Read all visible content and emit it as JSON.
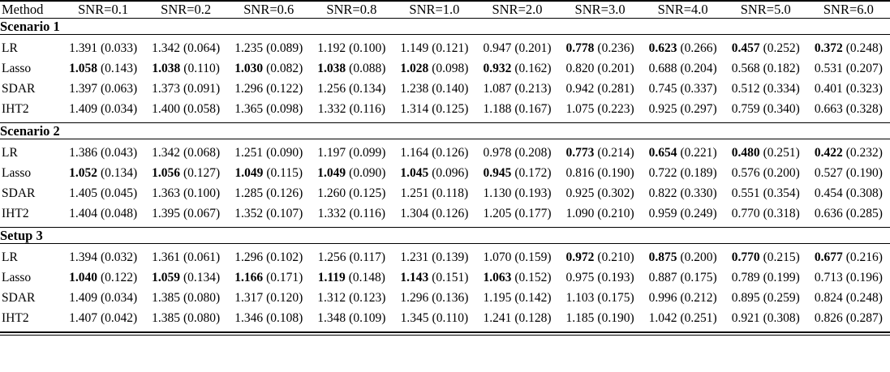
{
  "table": {
    "columns": [
      "Method",
      "SNR=0.1",
      "SNR=0.2",
      "SNR=0.6",
      "SNR=0.8",
      "SNR=1.0",
      "SNR=2.0",
      "SNR=3.0",
      "SNR=4.0",
      "SNR=5.0",
      "SNR=6.0"
    ],
    "sections": [
      {
        "title": "Scenario 1",
        "rows": [
          {
            "method": "LR",
            "cells": [
              {
                "mean": "1.391",
                "sd": "(0.033)",
                "bold": false
              },
              {
                "mean": "1.342",
                "sd": "(0.064)",
                "bold": false
              },
              {
                "mean": "1.235",
                "sd": "(0.089)",
                "bold": false
              },
              {
                "mean": "1.192",
                "sd": "(0.100)",
                "bold": false
              },
              {
                "mean": "1.149",
                "sd": "(0.121)",
                "bold": false
              },
              {
                "mean": "0.947",
                "sd": "(0.201)",
                "bold": false
              },
              {
                "mean": "0.778",
                "sd": "(0.236)",
                "bold": true
              },
              {
                "mean": "0.623",
                "sd": "(0.266)",
                "bold": true
              },
              {
                "mean": "0.457",
                "sd": "(0.252)",
                "bold": true
              },
              {
                "mean": "0.372",
                "sd": "(0.248)",
                "bold": true
              }
            ]
          },
          {
            "method": "Lasso",
            "cells": [
              {
                "mean": "1.058",
                "sd": "(0.143)",
                "bold": true
              },
              {
                "mean": "1.038",
                "sd": "(0.110)",
                "bold": true
              },
              {
                "mean": "1.030",
                "sd": "(0.082)",
                "bold": true
              },
              {
                "mean": "1.038",
                "sd": "(0.088)",
                "bold": true
              },
              {
                "mean": "1.028",
                "sd": "(0.098)",
                "bold": true
              },
              {
                "mean": "0.932",
                "sd": "(0.162)",
                "bold": true
              },
              {
                "mean": "0.820",
                "sd": "(0.201)",
                "bold": false
              },
              {
                "mean": "0.688",
                "sd": "(0.204)",
                "bold": false
              },
              {
                "mean": "0.568",
                "sd": "(0.182)",
                "bold": false
              },
              {
                "mean": "0.531",
                "sd": "(0.207)",
                "bold": false
              }
            ]
          },
          {
            "method": "SDAR",
            "cells": [
              {
                "mean": "1.397",
                "sd": "(0.063)",
                "bold": false
              },
              {
                "mean": "1.373",
                "sd": "(0.091)",
                "bold": false
              },
              {
                "mean": "1.296",
                "sd": "(0.122)",
                "bold": false
              },
              {
                "mean": "1.256",
                "sd": "(0.134)",
                "bold": false
              },
              {
                "mean": "1.238",
                "sd": "(0.140)",
                "bold": false
              },
              {
                "mean": "1.087",
                "sd": "(0.213)",
                "bold": false
              },
              {
                "mean": "0.942",
                "sd": "(0.281)",
                "bold": false
              },
              {
                "mean": "0.745",
                "sd": "(0.337)",
                "bold": false
              },
              {
                "mean": "0.512",
                "sd": "(0.334)",
                "bold": false
              },
              {
                "mean": "0.401",
                "sd": "(0.323)",
                "bold": false
              }
            ]
          },
          {
            "method": "IHT2",
            "cells": [
              {
                "mean": "1.409",
                "sd": "(0.034)",
                "bold": false
              },
              {
                "mean": "1.400",
                "sd": "(0.058)",
                "bold": false
              },
              {
                "mean": "1.365",
                "sd": "(0.098)",
                "bold": false
              },
              {
                "mean": "1.332",
                "sd": "(0.116)",
                "bold": false
              },
              {
                "mean": "1.314",
                "sd": "(0.125)",
                "bold": false
              },
              {
                "mean": "1.188",
                "sd": "(0.167)",
                "bold": false
              },
              {
                "mean": "1.075",
                "sd": "(0.223)",
                "bold": false
              },
              {
                "mean": "0.925",
                "sd": "(0.297)",
                "bold": false
              },
              {
                "mean": "0.759",
                "sd": "(0.340)",
                "bold": false
              },
              {
                "mean": "0.663",
                "sd": "(0.328)",
                "bold": false
              }
            ]
          }
        ]
      },
      {
        "title": "Scenario 2",
        "rows": [
          {
            "method": "LR",
            "cells": [
              {
                "mean": "1.386",
                "sd": "(0.043)",
                "bold": false
              },
              {
                "mean": "1.342",
                "sd": "(0.068)",
                "bold": false
              },
              {
                "mean": "1.251",
                "sd": "(0.090)",
                "bold": false
              },
              {
                "mean": "1.197",
                "sd": "(0.099)",
                "bold": false
              },
              {
                "mean": "1.164",
                "sd": "(0.126)",
                "bold": false
              },
              {
                "mean": "0.978",
                "sd": "(0.208)",
                "bold": false
              },
              {
                "mean": "0.773",
                "sd": "(0.214)",
                "bold": true
              },
              {
                "mean": "0.654",
                "sd": "(0.221)",
                "bold": true
              },
              {
                "mean": "0.480",
                "sd": "(0.251)",
                "bold": true
              },
              {
                "mean": "0.422",
                "sd": "(0.232)",
                "bold": true
              }
            ]
          },
          {
            "method": "Lasso",
            "cells": [
              {
                "mean": "1.052",
                "sd": "(0.134)",
                "bold": true
              },
              {
                "mean": "1.056",
                "sd": "(0.127)",
                "bold": true
              },
              {
                "mean": "1.049",
                "sd": "(0.115)",
                "bold": true
              },
              {
                "mean": "1.049",
                "sd": "(0.090)",
                "bold": true
              },
              {
                "mean": "1.045",
                "sd": "(0.096)",
                "bold": true
              },
              {
                "mean": "0.945",
                "sd": "(0.172)",
                "bold": true
              },
              {
                "mean": "0.816",
                "sd": "(0.190)",
                "bold": false
              },
              {
                "mean": "0.722",
                "sd": "(0.189)",
                "bold": false
              },
              {
                "mean": "0.576",
                "sd": "(0.200)",
                "bold": false
              },
              {
                "mean": "0.527",
                "sd": "(0.190)",
                "bold": false
              }
            ]
          },
          {
            "method": "SDAR",
            "cells": [
              {
                "mean": "1.405",
                "sd": "(0.045)",
                "bold": false
              },
              {
                "mean": "1.363",
                "sd": "(0.100)",
                "bold": false
              },
              {
                "mean": "1.285",
                "sd": "(0.126)",
                "bold": false
              },
              {
                "mean": "1.260",
                "sd": "(0.125)",
                "bold": false
              },
              {
                "mean": "1.251",
                "sd": "(0.118)",
                "bold": false
              },
              {
                "mean": "1.130",
                "sd": "(0.193)",
                "bold": false
              },
              {
                "mean": "0.925",
                "sd": "(0.302)",
                "bold": false
              },
              {
                "mean": "0.822",
                "sd": "(0.330)",
                "bold": false
              },
              {
                "mean": "0.551",
                "sd": "(0.354)",
                "bold": false
              },
              {
                "mean": "0.454",
                "sd": "(0.308)",
                "bold": false
              }
            ]
          },
          {
            "method": "IHT2",
            "cells": [
              {
                "mean": "1.404",
                "sd": "(0.048)",
                "bold": false
              },
              {
                "mean": "1.395",
                "sd": "(0.067)",
                "bold": false
              },
              {
                "mean": "1.352",
                "sd": "(0.107)",
                "bold": false
              },
              {
                "mean": "1.332",
                "sd": "(0.116)",
                "bold": false
              },
              {
                "mean": "1.304",
                "sd": "(0.126)",
                "bold": false
              },
              {
                "mean": "1.205",
                "sd": "(0.177)",
                "bold": false
              },
              {
                "mean": "1.090",
                "sd": "(0.210)",
                "bold": false
              },
              {
                "mean": "0.959",
                "sd": "(0.249)",
                "bold": false
              },
              {
                "mean": "0.770",
                "sd": "(0.318)",
                "bold": false
              },
              {
                "mean": "0.636",
                "sd": "(0.285)",
                "bold": false
              }
            ]
          }
        ]
      },
      {
        "title": "Setup 3",
        "rows": [
          {
            "method": "LR",
            "cells": [
              {
                "mean": "1.394",
                "sd": "(0.032)",
                "bold": false
              },
              {
                "mean": "1.361",
                "sd": "(0.061)",
                "bold": false
              },
              {
                "mean": "1.296",
                "sd": "(0.102)",
                "bold": false
              },
              {
                "mean": "1.256",
                "sd": "(0.117)",
                "bold": false
              },
              {
                "mean": "1.231",
                "sd": "(0.139)",
                "bold": false
              },
              {
                "mean": "1.070",
                "sd": "(0.159)",
                "bold": false
              },
              {
                "mean": "0.972",
                "sd": "(0.210)",
                "bold": true
              },
              {
                "mean": "0.875",
                "sd": "(0.200)",
                "bold": true
              },
              {
                "mean": "0.770",
                "sd": "(0.215)",
                "bold": true
              },
              {
                "mean": "0.677",
                "sd": "(0.216)",
                "bold": true
              }
            ]
          },
          {
            "method": "Lasso",
            "cells": [
              {
                "mean": "1.040",
                "sd": "(0.122)",
                "bold": true
              },
              {
                "mean": "1.059",
                "sd": "(0.134)",
                "bold": true
              },
              {
                "mean": "1.166",
                "sd": "(0.171)",
                "bold": true
              },
              {
                "mean": "1.119",
                "sd": "(0.148)",
                "bold": true
              },
              {
                "mean": "1.143",
                "sd": "(0.151)",
                "bold": true
              },
              {
                "mean": "1.063",
                "sd": "(0.152)",
                "bold": true
              },
              {
                "mean": "0.975",
                "sd": "(0.193)",
                "bold": false
              },
              {
                "mean": "0.887",
                "sd": "(0.175)",
                "bold": false
              },
              {
                "mean": "0.789",
                "sd": "(0.199)",
                "bold": false
              },
              {
                "mean": "0.713",
                "sd": "(0.196)",
                "bold": false
              }
            ]
          },
          {
            "method": "SDAR",
            "cells": [
              {
                "mean": "1.409",
                "sd": "(0.034)",
                "bold": false
              },
              {
                "mean": "1.385",
                "sd": "(0.080)",
                "bold": false
              },
              {
                "mean": "1.317",
                "sd": "(0.120)",
                "bold": false
              },
              {
                "mean": "1.312",
                "sd": "(0.123)",
                "bold": false
              },
              {
                "mean": "1.296",
                "sd": "(0.136)",
                "bold": false
              },
              {
                "mean": "1.195",
                "sd": "(0.142)",
                "bold": false
              },
              {
                "mean": "1.103",
                "sd": "(0.175)",
                "bold": false
              },
              {
                "mean": "0.996",
                "sd": "(0.212)",
                "bold": false
              },
              {
                "mean": "0.895",
                "sd": "(0.259)",
                "bold": false
              },
              {
                "mean": "0.824",
                "sd": "(0.248)",
                "bold": false
              }
            ]
          },
          {
            "method": "IHT2",
            "cells": [
              {
                "mean": "1.407",
                "sd": "(0.042)",
                "bold": false
              },
              {
                "mean": "1.385",
                "sd": "(0.080)",
                "bold": false
              },
              {
                "mean": "1.346",
                "sd": "(0.108)",
                "bold": false
              },
              {
                "mean": "1.348",
                "sd": "(0.109)",
                "bold": false
              },
              {
                "mean": "1.345",
                "sd": "(0.110)",
                "bold": false
              },
              {
                "mean": "1.241",
                "sd": "(0.128)",
                "bold": false
              },
              {
                "mean": "1.185",
                "sd": "(0.190)",
                "bold": false
              },
              {
                "mean": "1.042",
                "sd": "(0.251)",
                "bold": false
              },
              {
                "mean": "0.921",
                "sd": "(0.308)",
                "bold": false
              },
              {
                "mean": "0.826",
                "sd": "(0.287)",
                "bold": false
              }
            ]
          }
        ]
      }
    ]
  }
}
